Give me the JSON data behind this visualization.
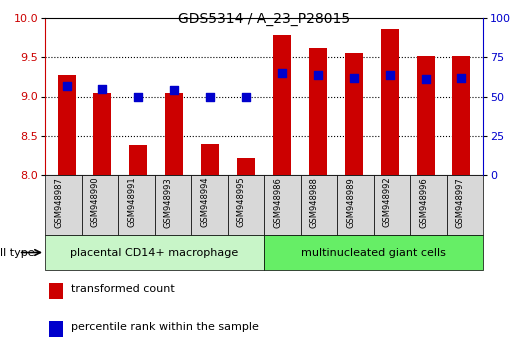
{
  "title": "GDS5314 / A_23_P28015",
  "samples": [
    "GSM948987",
    "GSM948990",
    "GSM948991",
    "GSM948993",
    "GSM948994",
    "GSM948995",
    "GSM948986",
    "GSM948988",
    "GSM948989",
    "GSM948992",
    "GSM948996",
    "GSM948997"
  ],
  "transformed_count": [
    9.28,
    9.05,
    8.38,
    9.05,
    8.4,
    8.22,
    9.78,
    9.62,
    9.56,
    9.86,
    9.52,
    9.52
  ],
  "percentile_rank": [
    57,
    55,
    50,
    54,
    50,
    50,
    65,
    64,
    62,
    64,
    61,
    62
  ],
  "groups": [
    {
      "label": "placental CD14+ macrophage",
      "indices": [
        0,
        1,
        2,
        3,
        4,
        5
      ],
      "color": "#c8f5c8"
    },
    {
      "label": "multinucleated giant cells",
      "indices": [
        6,
        7,
        8,
        9,
        10,
        11
      ],
      "color": "#66ee66"
    }
  ],
  "ylim_left": [
    8,
    10
  ],
  "ylim_right": [
    0,
    100
  ],
  "yticks_left": [
    8,
    8.5,
    9,
    9.5,
    10
  ],
  "yticks_right": [
    0,
    25,
    50,
    75,
    100
  ],
  "bar_color": "#cc0000",
  "dot_color": "#0000cc",
  "bar_width": 0.5,
  "dot_size": 28,
  "grid_color": "black",
  "sample_box_color": "#d8d8d8",
  "legend_items": [
    {
      "label": "transformed count",
      "color": "#cc0000"
    },
    {
      "label": "percentile rank within the sample",
      "color": "#0000cc"
    }
  ],
  "cell_type_label": "cell type",
  "background_color": "#ffffff"
}
